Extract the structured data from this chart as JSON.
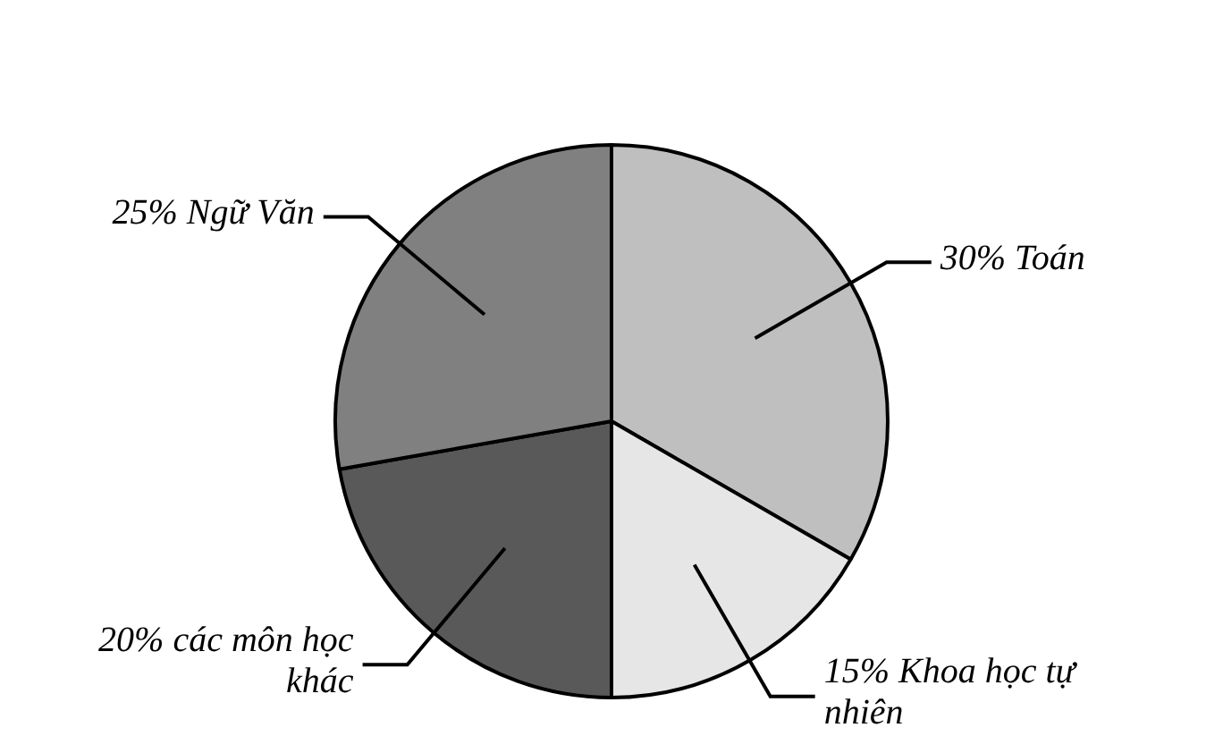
{
  "chart_data": {
    "type": "pie",
    "categories": [
      "Toán",
      "Khoa học tự nhiên",
      "các môn học khác",
      "Ngữ Văn"
    ],
    "values": [
      30,
      15,
      20,
      25
    ],
    "value_labels": [
      "30%",
      "15%",
      "20%",
      "25%"
    ],
    "colors": [
      "#bfbfbf",
      "#e6e6e6",
      "#595959",
      "#808080"
    ],
    "legend": false
  }
}
